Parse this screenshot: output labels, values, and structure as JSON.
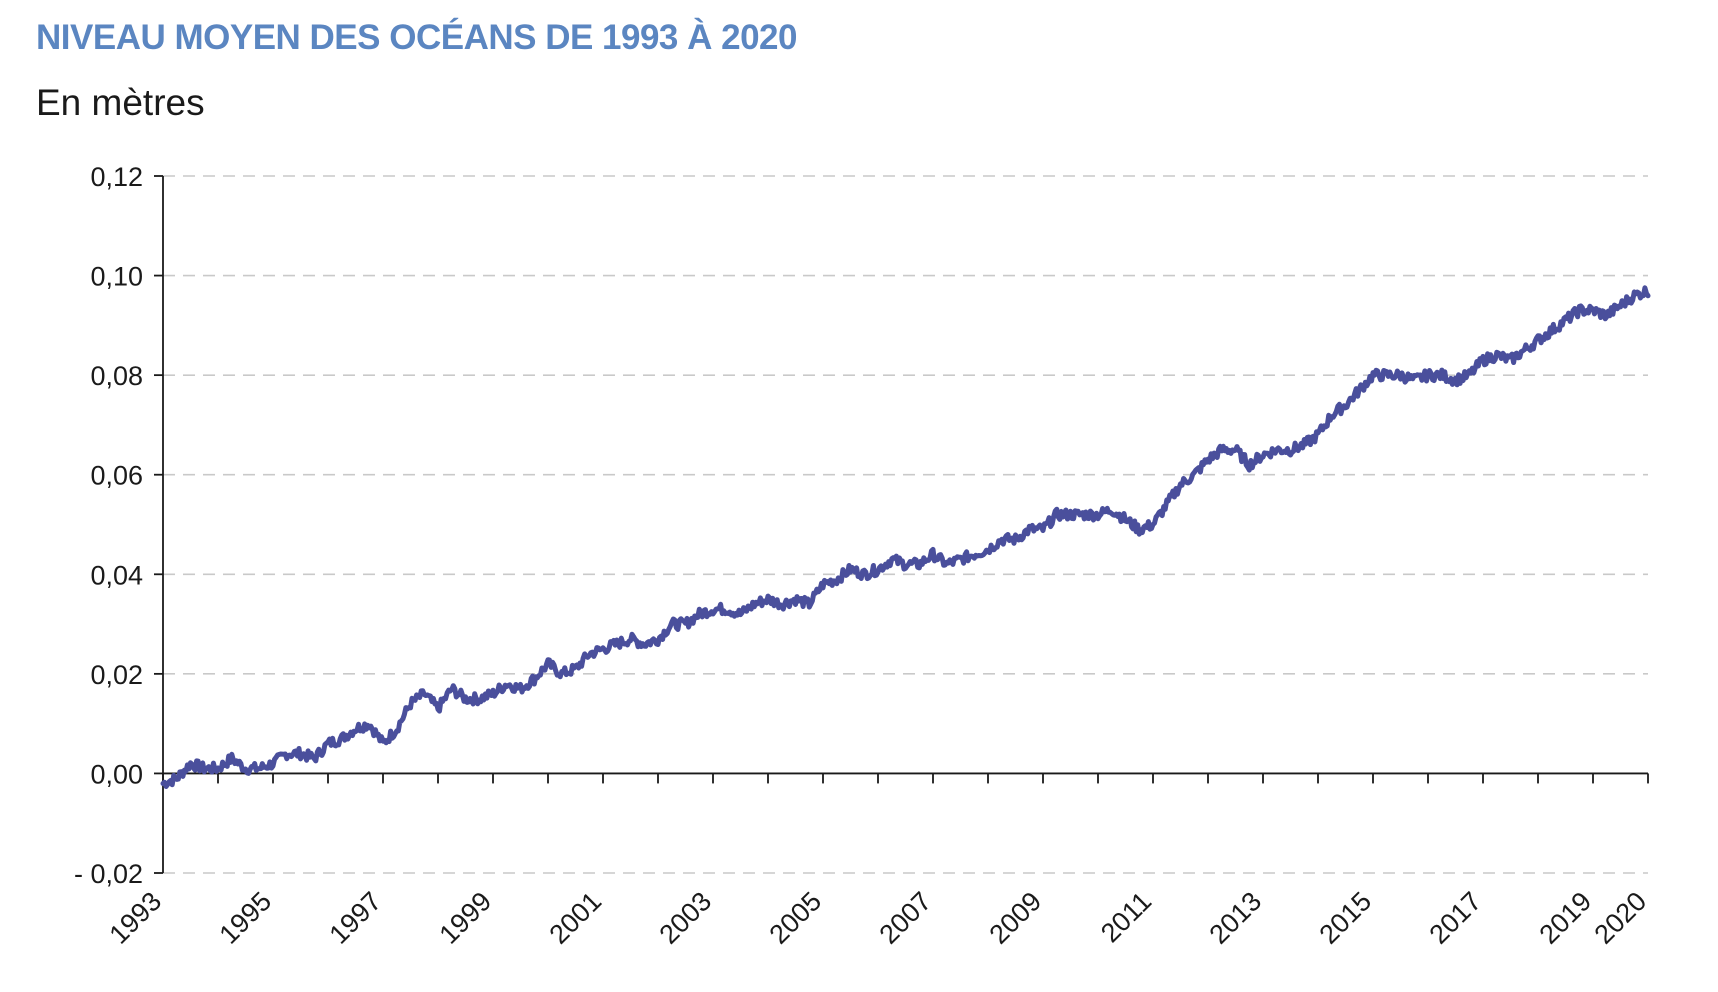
{
  "chart_data": {
    "type": "line",
    "title": "NIVEAU MOYEN DES OCÉANS DE 1993 À 2020",
    "subtitle": "En mètres",
    "xlabel": "",
    "ylabel": "",
    "xlim": [
      1993,
      2020
    ],
    "ylim": [
      -0.02,
      0.12
    ],
    "grid": "horizontal-dashed",
    "y_ticks": [
      -0.02,
      0.0,
      0.02,
      0.04,
      0.06,
      0.08,
      0.1,
      0.12
    ],
    "y_tick_labels": [
      "- 0,02",
      "0,00",
      "0,02",
      "0,04",
      "0,06",
      "0,08",
      "0,10",
      "0,12"
    ],
    "x_ticks": [
      1993,
      1995,
      1997,
      1999,
      2001,
      2003,
      2005,
      2007,
      2009,
      2011,
      2013,
      2015,
      2017,
      2019,
      2020
    ],
    "x_tick_labels": [
      "1993",
      "1995",
      "1997",
      "1999",
      "2001",
      "2003",
      "2005",
      "2007",
      "2009",
      "2011",
      "2013",
      "2015",
      "2017",
      "2019",
      "2020"
    ],
    "series": [
      {
        "name": "Niveau moyen des océans",
        "color": "#4a4f9c",
        "x": [
          1993.0,
          1993.25,
          1993.5,
          1993.75,
          1994.0,
          1994.25,
          1994.5,
          1994.75,
          1995.0,
          1995.25,
          1995.5,
          1995.75,
          1996.0,
          1996.25,
          1996.5,
          1996.75,
          1997.0,
          1997.25,
          1997.5,
          1997.75,
          1998.0,
          1998.25,
          1998.5,
          1998.75,
          1999.0,
          1999.25,
          1999.5,
          1999.75,
          2000.0,
          2000.25,
          2000.5,
          2000.75,
          2001.0,
          2001.25,
          2001.5,
          2001.75,
          2002.0,
          2002.25,
          2002.5,
          2002.75,
          2003.0,
          2003.25,
          2003.5,
          2003.75,
          2004.0,
          2004.25,
          2004.5,
          2004.75,
          2005.0,
          2005.25,
          2005.5,
          2005.75,
          2006.0,
          2006.25,
          2006.5,
          2006.75,
          2007.0,
          2007.25,
          2007.5,
          2007.75,
          2008.0,
          2008.25,
          2008.5,
          2008.75,
          2009.0,
          2009.25,
          2009.5,
          2009.75,
          2010.0,
          2010.25,
          2010.5,
          2010.75,
          2011.0,
          2011.25,
          2011.5,
          2011.75,
          2012.0,
          2012.25,
          2012.5,
          2012.75,
          2013.0,
          2013.25,
          2013.5,
          2013.75,
          2014.0,
          2014.25,
          2014.5,
          2014.75,
          2015.0,
          2015.25,
          2015.5,
          2015.75,
          2016.0,
          2016.25,
          2016.5,
          2016.75,
          2017.0,
          2017.25,
          2017.5,
          2017.75,
          2018.0,
          2018.25,
          2018.5,
          2018.75,
          2019.0,
          2019.25,
          2019.5,
          2019.75,
          2020.0
        ],
        "values": [
          -0.002,
          -0.001,
          0.002,
          0.001,
          0.001,
          0.003,
          0.001,
          0.001,
          0.002,
          0.004,
          0.004,
          0.003,
          0.006,
          0.007,
          0.009,
          0.01,
          0.006,
          0.009,
          0.014,
          0.016,
          0.013,
          0.017,
          0.015,
          0.015,
          0.016,
          0.018,
          0.017,
          0.019,
          0.022,
          0.02,
          0.021,
          0.024,
          0.025,
          0.026,
          0.027,
          0.026,
          0.027,
          0.03,
          0.03,
          0.032,
          0.033,
          0.033,
          0.032,
          0.034,
          0.035,
          0.034,
          0.035,
          0.034,
          0.038,
          0.039,
          0.041,
          0.04,
          0.041,
          0.043,
          0.042,
          0.042,
          0.044,
          0.042,
          0.043,
          0.044,
          0.045,
          0.047,
          0.047,
          0.049,
          0.049,
          0.052,
          0.052,
          0.052,
          0.052,
          0.053,
          0.051,
          0.049,
          0.05,
          0.054,
          0.058,
          0.06,
          0.063,
          0.065,
          0.065,
          0.062,
          0.064,
          0.065,
          0.065,
          0.066,
          0.068,
          0.072,
          0.074,
          0.077,
          0.08,
          0.08,
          0.08,
          0.079,
          0.08,
          0.08,
          0.079,
          0.08,
          0.083,
          0.084,
          0.083,
          0.085,
          0.087,
          0.089,
          0.091,
          0.093,
          0.093,
          0.092,
          0.094,
          0.096,
          0.097
        ]
      }
    ]
  }
}
